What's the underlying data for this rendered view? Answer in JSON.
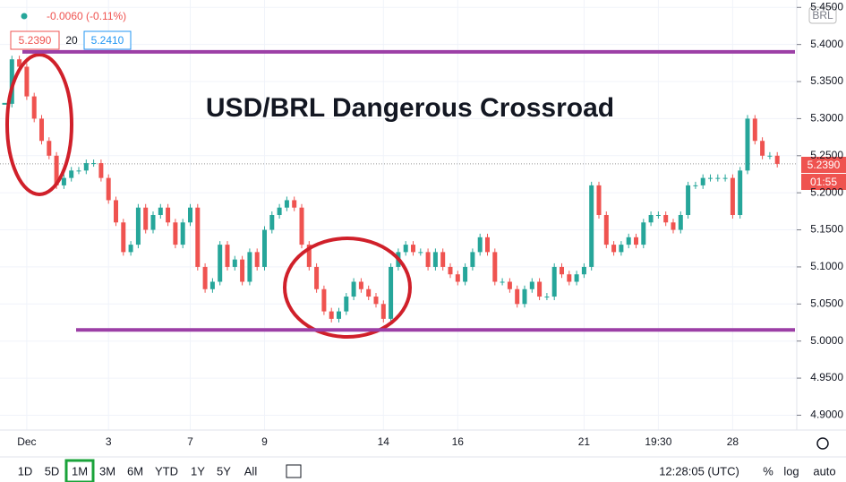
{
  "header": {
    "change": "-0.0060 (-0.11%)",
    "bid": "5.2390",
    "spread": "20",
    "ask": "5.2410"
  },
  "currency": "BRL",
  "price_badge": {
    "price": "5.2390",
    "countdown": "01:55"
  },
  "toolbar": {
    "ranges": [
      "1D",
      "5D",
      "1M",
      "3M",
      "6M",
      "YTD",
      "1Y",
      "5Y",
      "All"
    ],
    "active": "1M",
    "clock": "12:28:05 (UTC)",
    "options": [
      "%",
      "log",
      "auto"
    ]
  },
  "chart_data": {
    "type": "candlestick",
    "title": "USD/BRL Dangerous Crossroad",
    "categories": [
      null,
      null,
      null,
      "Dec",
      null,
      null,
      null,
      null,
      null,
      null,
      null,
      null,
      null,
      null,
      "3",
      null,
      null,
      null,
      null,
      null,
      null,
      null,
      null,
      null,
      null,
      "7",
      null,
      null,
      null,
      null,
      null,
      null,
      null,
      null,
      null,
      "9",
      null,
      null,
      null,
      null,
      null,
      null,
      null,
      null,
      null,
      null,
      null,
      null,
      null,
      null,
      null,
      "14",
      null,
      null,
      null,
      null,
      null,
      null,
      null,
      null,
      null,
      "16",
      null,
      null,
      null,
      null,
      null,
      null,
      null,
      null,
      null,
      null,
      null,
      null,
      null,
      null,
      null,
      null,
      "21",
      null,
      null,
      null,
      null,
      null,
      null,
      null,
      null,
      null,
      "19:30",
      null,
      null,
      null,
      null,
      null,
      null,
      null,
      null,
      null,
      "28",
      null,
      null,
      null,
      null,
      null,
      null
    ],
    "values": [
      5.32,
      5.38,
      5.37,
      5.33,
      5.3,
      5.27,
      5.25,
      5.21,
      5.22,
      5.23,
      5.23,
      5.24,
      5.24,
      5.22,
      5.19,
      5.16,
      5.12,
      5.13,
      5.18,
      5.15,
      5.17,
      5.18,
      5.16,
      5.13,
      5.16,
      5.18,
      5.1,
      5.07,
      5.08,
      5.13,
      5.1,
      5.11,
      5.08,
      5.12,
      5.1,
      5.15,
      5.17,
      5.18,
      5.19,
      5.18,
      5.13,
      5.1,
      5.07,
      5.04,
      5.03,
      5.04,
      5.06,
      5.08,
      5.07,
      5.06,
      5.05,
      5.03,
      5.1,
      5.12,
      5.13,
      5.12,
      5.12,
      5.1,
      5.12,
      5.1,
      5.09,
      5.08,
      5.1,
      5.12,
      5.14,
      5.12,
      5.08,
      5.08,
      5.07,
      5.05,
      5.07,
      5.08,
      5.06,
      5.06,
      5.1,
      5.09,
      5.08,
      5.09,
      5.1,
      5.21,
      5.17,
      5.13,
      5.12,
      5.13,
      5.14,
      5.13,
      5.16,
      5.17,
      5.17,
      5.16,
      5.15,
      5.17,
      5.21,
      5.21,
      5.22,
      5.22,
      5.22,
      5.22,
      5.17,
      5.23,
      5.3,
      5.27,
      5.25,
      5.25,
      5.239
    ],
    "up_color": "#26a69a",
    "down_color": "#ef5350",
    "levels": [
      5.39,
      5.015
    ],
    "level_color": "#9c3fa6",
    "ylim": [
      4.88,
      5.46
    ],
    "yticks": [
      {
        "value": 4.9,
        "label": "4.9000"
      },
      {
        "value": 4.95,
        "label": "4.9500"
      },
      {
        "value": 5.0,
        "label": "5.0000"
      },
      {
        "value": 5.05,
        "label": "5.0500"
      },
      {
        "value": 5.1,
        "label": "5.1000"
      },
      {
        "value": 5.15,
        "label": "5.1500"
      },
      {
        "value": 5.2,
        "label": "5.2000"
      },
      {
        "value": 5.25,
        "label": "5.2500"
      },
      {
        "value": 5.3,
        "label": "5.3000"
      },
      {
        "value": 5.35,
        "label": "5.3500"
      },
      {
        "value": 5.4,
        "label": "5.4000"
      },
      {
        "value": 5.45,
        "label": "5.4500"
      }
    ],
    "grid": true
  }
}
